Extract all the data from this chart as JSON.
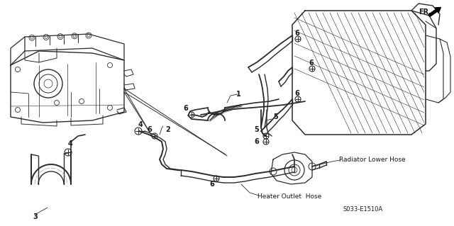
{
  "background_color": "#ffffff",
  "part_code": "S033-E1510A",
  "line_color": "#2a2a2a",
  "text_color": "#1a1a1a",
  "radiator_lower_hose_label": "Radiator Lower Hose",
  "heater_outlet_hose_label": "Heater Outlet  Hose",
  "fr_label": "FR.",
  "label_fontsize": 6.5,
  "number_fontsize": 7.0,
  "small_fontsize": 6.0
}
